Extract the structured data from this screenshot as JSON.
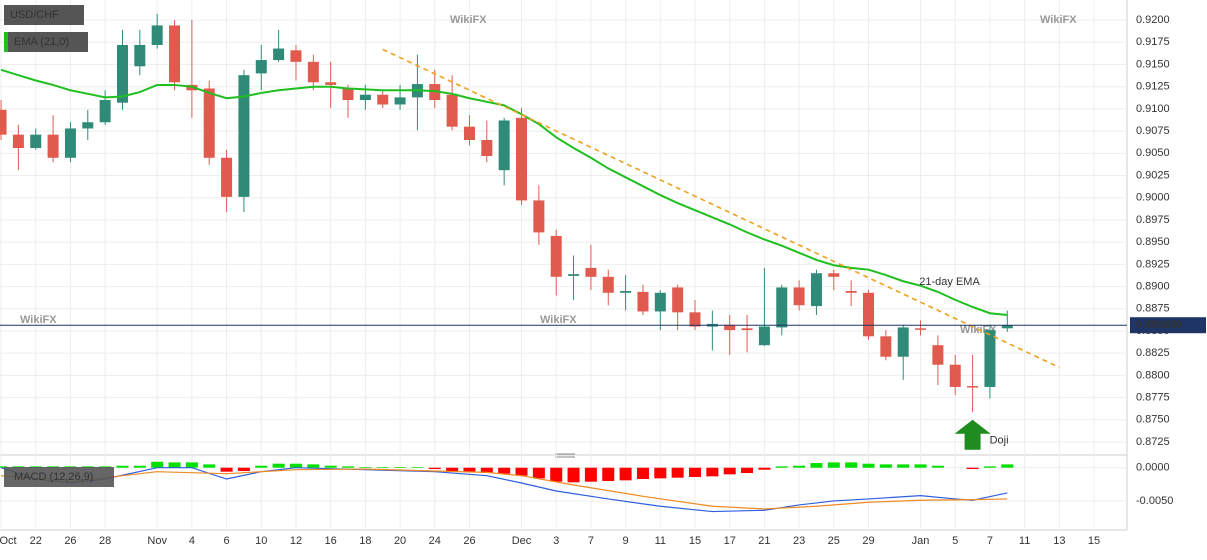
{
  "chart_data": [
    {
      "type": "candlestick",
      "title": "USD/CHF",
      "up_color": "#2f8b78",
      "down_color": "#e05a4e",
      "open": [
        0.9099,
        0.9071,
        0.9056,
        0.9071,
        0.9045,
        0.9078,
        0.9085,
        0.9107,
        0.9148,
        0.9172,
        0.9194,
        0.9127,
        0.9123,
        0.9045,
        0.9001,
        0.914,
        0.9155,
        0.9166,
        0.9153,
        0.913,
        0.9123,
        0.911,
        0.9116,
        0.9105,
        0.9113,
        0.9128,
        0.9116,
        0.908,
        0.9065,
        0.9031,
        0.909,
        0.8997,
        0.8957,
        0.8912,
        0.8921,
        0.8911,
        0.8893,
        0.8894,
        0.8872,
        0.8899,
        0.8871,
        0.8855,
        0.8857,
        0.8853,
        0.8834,
        0.8854,
        0.8899,
        0.8878,
        0.8915,
        0.8895,
        0.8893,
        0.8844,
        0.8821,
        0.8853,
        0.8834,
        0.8812,
        0.8788,
        0.8787,
        0.8853
      ],
      "high": [
        0.911,
        0.9082,
        0.9078,
        0.9093,
        0.9085,
        0.9099,
        0.9121,
        0.9189,
        0.9189,
        0.9207,
        0.92,
        0.92,
        0.9132,
        0.9054,
        0.9144,
        0.9172,
        0.9189,
        0.9172,
        0.9161,
        0.9153,
        0.9127,
        0.9127,
        0.9121,
        0.9127,
        0.9161,
        0.9144,
        0.9138,
        0.9093,
        0.9087,
        0.909,
        0.9101,
        0.9014,
        0.8964,
        0.8935,
        0.8947,
        0.8919,
        0.8913,
        0.8902,
        0.8896,
        0.8902,
        0.8885,
        0.8873,
        0.8868,
        0.8868,
        0.8921,
        0.8902,
        0.8907,
        0.8919,
        0.8919,
        0.8907,
        0.8896,
        0.8851,
        0.8857,
        0.8862,
        0.8845,
        0.8823,
        0.8823,
        0.8857,
        0.8873
      ],
      "low": [
        0.9065,
        0.9031,
        0.9054,
        0.904,
        0.904,
        0.9065,
        0.9082,
        0.9099,
        0.9138,
        0.9168,
        0.9121,
        0.909,
        0.9037,
        0.8984,
        0.8984,
        0.9121,
        0.9153,
        0.9132,
        0.9121,
        0.9101,
        0.909,
        0.9099,
        0.9101,
        0.9099,
        0.9076,
        0.9101,
        0.9076,
        0.9059,
        0.904,
        0.9014,
        0.8992,
        0.8947,
        0.889,
        0.8885,
        0.8896,
        0.8879,
        0.8873,
        0.8868,
        0.8851,
        0.8851,
        0.8851,
        0.8828,
        0.8823,
        0.8826,
        0.8833,
        0.8845,
        0.8873,
        0.8868,
        0.8896,
        0.8878,
        0.884,
        0.8817,
        0.8795,
        0.8845,
        0.8789,
        0.8778,
        0.8759,
        0.8774,
        0.8849
      ],
      "close": [
        0.9071,
        0.9056,
        0.9071,
        0.9045,
        0.9078,
        0.9085,
        0.911,
        0.9172,
        0.9172,
        0.9194,
        0.913,
        0.9121,
        0.9045,
        0.9001,
        0.9138,
        0.9155,
        0.9168,
        0.9153,
        0.913,
        0.9127,
        0.911,
        0.9116,
        0.9105,
        0.9113,
        0.9128,
        0.911,
        0.908,
        0.9065,
        0.9047,
        0.9087,
        0.8997,
        0.8961,
        0.8911,
        0.8914,
        0.8911,
        0.8893,
        0.8895,
        0.8872,
        0.8893,
        0.8871,
        0.8855,
        0.8858,
        0.8851,
        0.8851,
        0.8855,
        0.8899,
        0.8879,
        0.8915,
        0.8911,
        0.8893,
        0.8844,
        0.8821,
        0.8854,
        0.8852,
        0.8812,
        0.8787,
        0.8787,
        0.8851,
        0.88565
      ],
      "series": [
        {
          "name": "EMA (21,0)",
          "color": "#1fbf1f",
          "values": [
            0.9144,
            0.9138,
            0.9132,
            0.9127,
            0.9121,
            0.9117,
            0.9113,
            0.9114,
            0.9119,
            0.9127,
            0.9127,
            0.9125,
            0.9118,
            0.9112,
            0.9114,
            0.9118,
            0.9121,
            0.9123,
            0.9125,
            0.9125,
            0.9123,
            0.9122,
            0.9121,
            0.9121,
            0.9121,
            0.912,
            0.9117,
            0.9112,
            0.9108,
            0.9104,
            0.9094,
            0.9083,
            0.9068,
            0.9056,
            0.9045,
            0.9033,
            0.9023,
            0.9013,
            0.9003,
            0.8994,
            0.8986,
            0.8978,
            0.897,
            0.8961,
            0.8953,
            0.8946,
            0.8938,
            0.893,
            0.8924,
            0.8921,
            0.8919,
            0.8913,
            0.8906,
            0.8901,
            0.8894,
            0.8885,
            0.8877,
            0.887,
            0.8868
          ]
        }
      ],
      "trendline": {
        "color": "#f0a020",
        "x": [
          22,
          61
        ],
        "values": [
          0.9167,
          0.8809
        ]
      },
      "last_price": 0.88565,
      "last_price_label": "0.885650",
      "last_price_color": "#1f3566",
      "ema_annotation": "21-day EMA",
      "doji_annotation": "Doji",
      "doji_index": 56,
      "arrow_color": "#1e8c1e",
      "watermark": "WikiFX",
      "grid": true,
      "xlim": [
        -0.06,
        64.9
      ],
      "xticks": [
        {
          "value": 0,
          "label": "Oct"
        },
        {
          "value": 2,
          "label": "22"
        },
        {
          "value": 4,
          "label": "26"
        },
        {
          "value": 6,
          "label": "28"
        },
        {
          "value": 9,
          "label": "Nov"
        },
        {
          "value": 11,
          "label": "4"
        },
        {
          "value": 13,
          "label": "6"
        },
        {
          "value": 15,
          "label": "10"
        },
        {
          "value": 17,
          "label": "12"
        },
        {
          "value": 19,
          "label": "16"
        },
        {
          "value": 21,
          "label": "18"
        },
        {
          "value": 23,
          "label": "20"
        },
        {
          "value": 25,
          "label": "24"
        },
        {
          "value": 27,
          "label": "26"
        },
        {
          "value": 30,
          "label": "Dec"
        },
        {
          "value": 32,
          "label": "3"
        },
        {
          "value": 34,
          "label": "7"
        },
        {
          "value": 36,
          "label": "9"
        },
        {
          "value": 38,
          "label": "11"
        },
        {
          "value": 40,
          "label": "15"
        },
        {
          "value": 42,
          "label": "17"
        },
        {
          "value": 44,
          "label": "21"
        },
        {
          "value": 46,
          "label": "23"
        },
        {
          "value": 48,
          "label": "25"
        },
        {
          "value": 50,
          "label": "29"
        },
        {
          "value": 53,
          "label": "Jan"
        },
        {
          "value": 55,
          "label": "5"
        },
        {
          "value": 57,
          "label": "7"
        },
        {
          "value": 59,
          "label": "11"
        },
        {
          "value": 61,
          "label": "13"
        },
        {
          "value": 63,
          "label": "15"
        }
      ],
      "ylim": [
        0.8716,
        0.9217
      ],
      "yticks": [
        {
          "value": 0.92,
          "label": "0.9200"
        },
        {
          "value": 0.9175,
          "label": "0.9175"
        },
        {
          "value": 0.915,
          "label": "0.9150"
        },
        {
          "value": 0.9125,
          "label": "0.9125"
        },
        {
          "value": 0.91,
          "label": "0.9100"
        },
        {
          "value": 0.9075,
          "label": "0.9075"
        },
        {
          "value": 0.905,
          "label": "0.9050"
        },
        {
          "value": 0.9025,
          "label": "0.9025"
        },
        {
          "value": 0.9,
          "label": "0.9000"
        },
        {
          "value": 0.8975,
          "label": "0.8975"
        },
        {
          "value": 0.895,
          "label": "0.8950"
        },
        {
          "value": 0.8925,
          "label": "0.8925"
        },
        {
          "value": 0.89,
          "label": "0.8900"
        },
        {
          "value": 0.8875,
          "label": "0.8875"
        },
        {
          "value": 0.885,
          "label": "0.8850"
        },
        {
          "value": 0.8825,
          "label": "0.8825"
        },
        {
          "value": 0.88,
          "label": "0.8800"
        },
        {
          "value": 0.8775,
          "label": "0.8775"
        },
        {
          "value": 0.875,
          "label": "0.8750"
        },
        {
          "value": 0.8725,
          "label": "0.8725"
        }
      ]
    },
    {
      "type": "macd",
      "title": "MACD (12,26,9)",
      "up_color": "#00e000",
      "down_color": "#ff0000",
      "values": [
        0.0002,
        0.0002,
        0.0002,
        0.0002,
        0.0002,
        0.0002,
        0.0002,
        0.0003,
        0.0003,
        0.0009,
        0.0008,
        0.0008,
        0.0005,
        -0.0006,
        -0.0005,
        0.0003,
        0.0006,
        0.0006,
        0.0005,
        0.0003,
        0.0002,
        0.0001,
        0.0001,
        0.0001,
        0.0001,
        -0.0002,
        -0.0005,
        -0.0007,
        -0.0008,
        -0.0009,
        -0.0012,
        -0.0016,
        -0.0021,
        -0.0022,
        -0.0021,
        -0.002,
        -0.0019,
        -0.0017,
        -0.0016,
        -0.0015,
        -0.0014,
        -0.0013,
        -0.001,
        -0.0008,
        -0.0003,
        0.0002,
        0.0003,
        0.0007,
        0.0008,
        0.0008,
        0.0006,
        0.0005,
        0.0005,
        0.0005,
        0.0003,
        0,
        -0.0002,
        0.0002,
        0.0005
      ],
      "series": [
        {
          "color": "#2f5fe0",
          "x": [
            0,
            2,
            4,
            6,
            9,
            11,
            13,
            15,
            17,
            21,
            25,
            28,
            30,
            32,
            35,
            38,
            41,
            44,
            46,
            48,
            50,
            53,
            55,
            56,
            58
          ],
          "values": [
            0,
            -0.0017,
            -0.0023,
            -0.0017,
            0,
            0,
            -0.0017,
            -0.0006,
            0,
            -0.0003,
            -0.0006,
            -0.0012,
            -0.0023,
            -0.0035,
            -0.0047,
            -0.0058,
            -0.0066,
            -0.0064,
            -0.0056,
            -0.005,
            -0.0047,
            -0.0042,
            -0.0047,
            -0.0049,
            -0.0038
          ]
        },
        {
          "color": "#f08a20",
          "x": [
            0,
            4,
            9,
            13,
            17,
            21,
            25,
            28,
            30,
            33,
            37,
            41,
            44,
            47,
            50,
            53,
            56,
            58
          ],
          "values": [
            -0.0012,
            -0.0021,
            -0.0006,
            -0.0009,
            -0.0003,
            -0.0002,
            -0.0005,
            -0.0007,
            -0.0012,
            -0.0026,
            -0.0043,
            -0.0058,
            -0.0062,
            -0.0058,
            -0.0052,
            -0.0049,
            -0.0048,
            -0.0047
          ]
        }
      ],
      "ylim": [
        -0.00907,
        0.00116
      ],
      "yticks": [
        {
          "value": 0,
          "label": "0.0000"
        },
        {
          "value": -0.005,
          "label": "-0.0050"
        }
      ]
    }
  ]
}
